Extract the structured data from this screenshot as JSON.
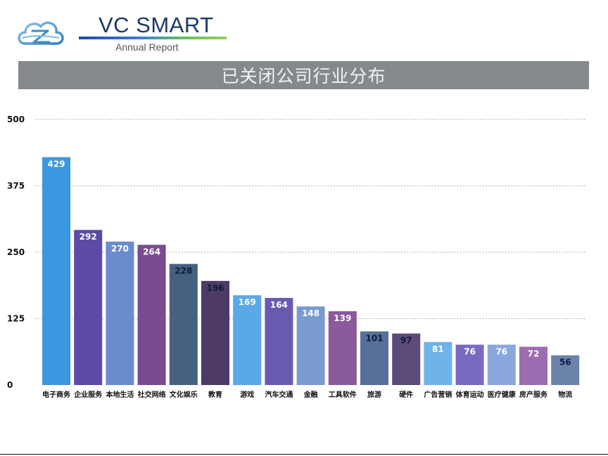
{
  "header": {
    "brand_name": "VC SMART",
    "brand_sub": "Annual Report",
    "title": "已关闭公司行业分布"
  },
  "colors": {
    "title_bar": "#848a8c",
    "bars": [
      "#3b98e0",
      "#5c4aa6",
      "#6a8ccc",
      "#7c4a8e",
      "#45617f",
      "#4d3a66",
      "#5aa8e6",
      "#6a5aaf",
      "#7b9bd0",
      "#8a5a9b",
      "#57709a",
      "#5c4a78",
      "#6eb3ea",
      "#7a6abf",
      "#8aa7dc",
      "#9b6cb0",
      "#6b83a8"
    ]
  },
  "chart_data": {
    "type": "bar",
    "title": "已关闭公司行业分布",
    "categories": [
      "电子商务",
      "企业服务",
      "本地生活",
      "社交网络",
      "文化娱乐",
      "教育",
      "游戏",
      "汽车交通",
      "金融",
      "工具软件",
      "旅游",
      "硬件",
      "广告营销",
      "体育运动",
      "医疗健康",
      "房产服务",
      "物流"
    ],
    "values": [
      429,
      292,
      270,
      264,
      228,
      196,
      169,
      164,
      148,
      139,
      101,
      97,
      81,
      76,
      76,
      72,
      56
    ],
    "label_colors": [
      "#ffffff",
      "#ffffff",
      "#ffffff",
      "#ffffff",
      "#0d1b3d",
      "#0d1b3d",
      "#ffffff",
      "#ffffff",
      "#ffffff",
      "#ffffff",
      "#0d1b3d",
      "#0d1b3d",
      "#ffffff",
      "#ffffff",
      "#ffffff",
      "#ffffff",
      "#0d1b3d"
    ],
    "ylim": [
      0,
      500
    ],
    "yticks": [
      0,
      125,
      250,
      375,
      500
    ],
    "xlabel": "",
    "ylabel": "",
    "grid": true
  }
}
